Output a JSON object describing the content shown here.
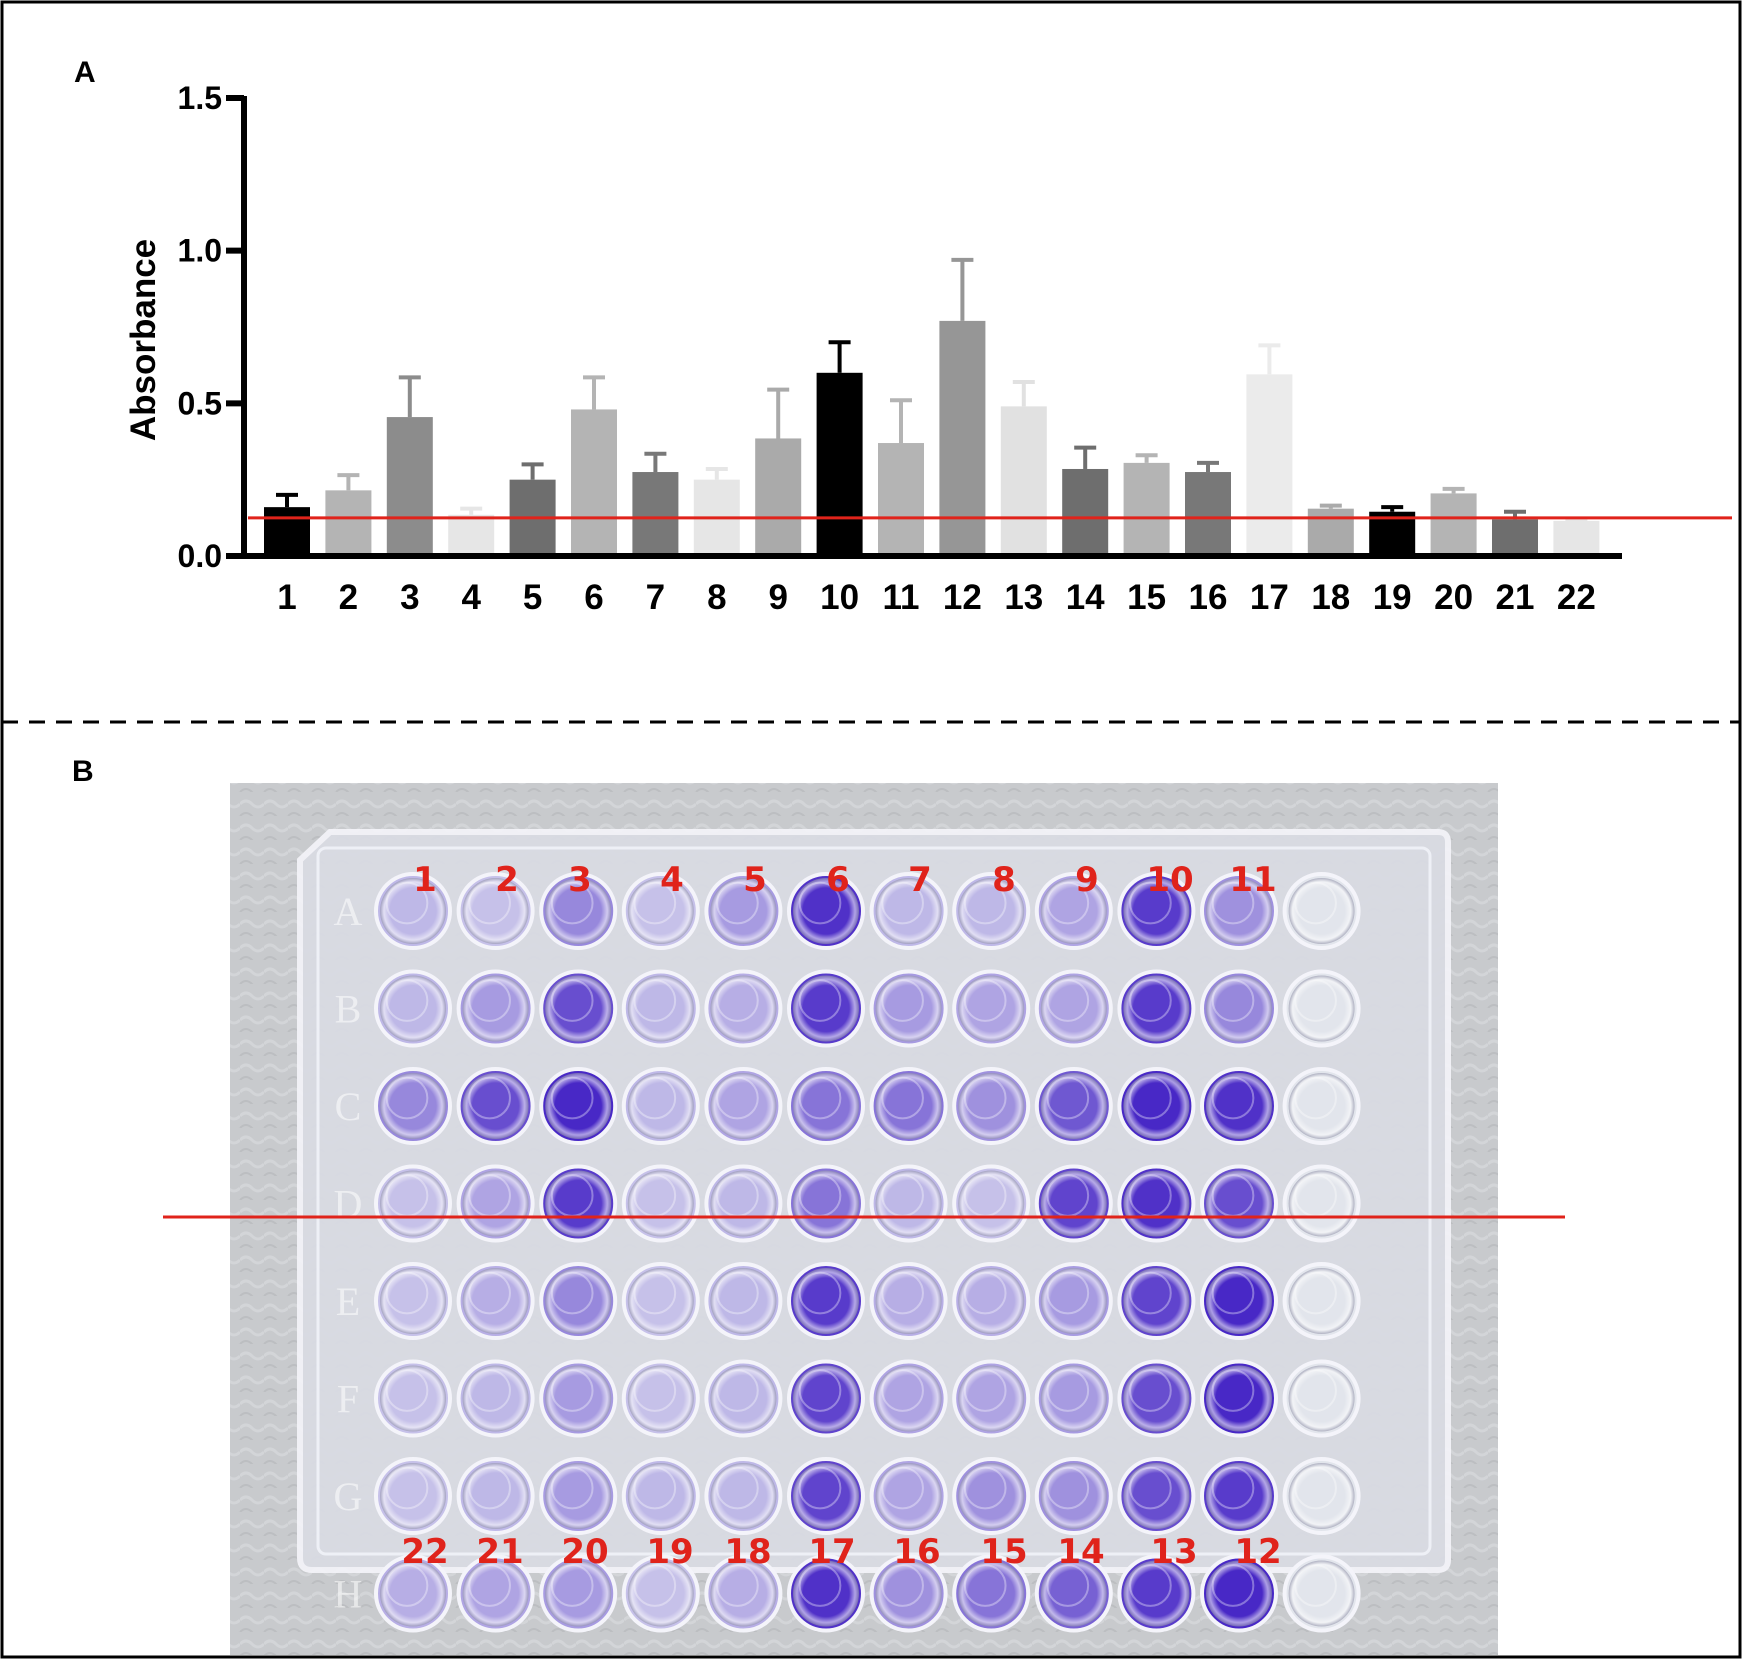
{
  "panels": {
    "a_label": "A",
    "b_label": "B"
  },
  "chart_data": {
    "type": "bar",
    "title": "",
    "xlabel": "",
    "ylabel": "Absorbance",
    "ylim": [
      0,
      1.5
    ],
    "yticks": [
      "0.0",
      "0.5",
      "1.0",
      "1.5"
    ],
    "ytick_values": [
      0,
      0.5,
      1.0,
      1.5
    ],
    "categories": [
      "1",
      "2",
      "3",
      "4",
      "5",
      "6",
      "7",
      "8",
      "9",
      "10",
      "11",
      "12",
      "13",
      "14",
      "15",
      "16",
      "17",
      "18",
      "19",
      "20",
      "21",
      "22"
    ],
    "values": [
      0.16,
      0.215,
      0.455,
      0.135,
      0.25,
      0.48,
      0.275,
      0.25,
      0.385,
      0.6,
      0.37,
      0.77,
      0.49,
      0.285,
      0.305,
      0.275,
      0.595,
      0.155,
      0.145,
      0.205,
      0.12,
      0.115
    ],
    "errors": [
      0.04,
      0.05,
      0.13,
      0.02,
      0.05,
      0.105,
      0.06,
      0.035,
      0.16,
      0.1,
      0.14,
      0.2,
      0.08,
      0.07,
      0.025,
      0.03,
      0.095,
      0.01,
      0.015,
      0.015,
      0.025,
      0.005
    ],
    "bar_colors": [
      "#000000",
      "#b4b4b4",
      "#8c8c8c",
      "#e6e6e6",
      "#6e6e6e",
      "#b4b4b4",
      "#787878",
      "#e6e6e6",
      "#aaaaaa",
      "#000000",
      "#b4b4b4",
      "#969696",
      "#e1e1e1",
      "#6e6e6e",
      "#b4b4b4",
      "#787878",
      "#ebebeb",
      "#aaaaaa",
      "#000000",
      "#b4b4b4",
      "#6e6e6e",
      "#e6e6e6"
    ],
    "threshold": 0.125,
    "threshold_color": "#e0231b"
  },
  "plate": {
    "top_labels": [
      "1",
      "2",
      "3",
      "4",
      "5",
      "6",
      "7",
      "8",
      "9",
      "10",
      "11"
    ],
    "bottom_labels": [
      "22",
      "21",
      "20",
      "19",
      "18",
      "17",
      "16",
      "15",
      "14",
      "13",
      "12"
    ],
    "row_letters": [
      "A",
      "B",
      "C",
      "D",
      "E",
      "F",
      "G",
      "H"
    ],
    "label_color": "#e0231b",
    "divider_color": "#e0231b",
    "well_intensity": [
      [
        0.2,
        0.15,
        0.45,
        0.15,
        0.35,
        0.9,
        0.2,
        0.2,
        0.3,
        0.85,
        0.4,
        0
      ],
      [
        0.2,
        0.35,
        0.75,
        0.2,
        0.25,
        0.85,
        0.35,
        0.3,
        0.3,
        0.85,
        0.45,
        0
      ],
      [
        0.45,
        0.75,
        0.95,
        0.2,
        0.3,
        0.55,
        0.55,
        0.4,
        0.7,
        0.95,
        0.9,
        0
      ],
      [
        0.15,
        0.3,
        0.85,
        0.15,
        0.2,
        0.55,
        0.2,
        0.15,
        0.8,
        0.9,
        0.75,
        0
      ],
      [
        0.15,
        0.25,
        0.45,
        0.15,
        0.2,
        0.85,
        0.25,
        0.25,
        0.35,
        0.8,
        0.95,
        0
      ],
      [
        0.15,
        0.2,
        0.35,
        0.15,
        0.2,
        0.8,
        0.3,
        0.3,
        0.35,
        0.75,
        0.95,
        0
      ],
      [
        0.15,
        0.2,
        0.35,
        0.2,
        0.2,
        0.8,
        0.3,
        0.4,
        0.4,
        0.75,
        0.85,
        0
      ],
      [
        0.25,
        0.3,
        0.35,
        0.15,
        0.25,
        0.9,
        0.4,
        0.55,
        0.65,
        0.85,
        0.95,
        0
      ]
    ]
  }
}
